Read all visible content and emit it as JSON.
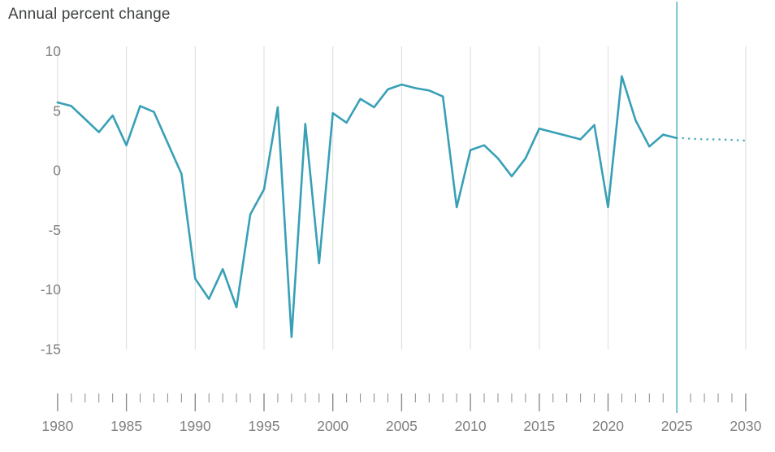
{
  "title": "Annual percent change",
  "colors": {
    "line": "#38a0b6",
    "forecast_line": "#4fadc0",
    "forecast_divider": "#76c2cf",
    "gridline": "#dbdbdb",
    "tick": "#8a8a8a",
    "axis_text": "#7f7f7f",
    "title_text": "#3d4042",
    "background": "#ffffff"
  },
  "chart_data": {
    "type": "line",
    "title": "Annual percent change",
    "xlabel": "",
    "ylabel": "Annual percent change",
    "xlim": [
      1980,
      2030
    ],
    "ylim": [
      -16.5,
      10.5
    ],
    "yticks": [
      10,
      5,
      0,
      -5,
      -10,
      -15
    ],
    "xticks_major": [
      1980,
      1985,
      1990,
      1995,
      2000,
      2005,
      2010,
      2015,
      2020,
      2025,
      2030
    ],
    "xtick_minor_step": 1,
    "grid": "vertical-only",
    "legend": "none",
    "forecast_divider_x": 2025,
    "series": [
      {
        "name": "historical",
        "style": "solid",
        "x": [
          1980,
          1981,
          1982,
          1983,
          1984,
          1985,
          1986,
          1987,
          1988,
          1989,
          1990,
          1991,
          1992,
          1993,
          1994,
          1995,
          1996,
          1997,
          1998,
          1999,
          2000,
          2001,
          2002,
          2003,
          2004,
          2005,
          2006,
          2007,
          2008,
          2009,
          2010,
          2011,
          2012,
          2013,
          2014,
          2015,
          2016,
          2017,
          2018,
          2019,
          2020,
          2021,
          2022,
          2023,
          2024,
          2025
        ],
        "values": [
          5.7,
          5.4,
          4.3,
          3.2,
          4.6,
          2.1,
          5.4,
          4.9,
          2.3,
          -0.3,
          -9.1,
          -10.8,
          -8.3,
          -11.5,
          -3.7,
          -1.6,
          5.3,
          -14.0,
          3.9,
          -7.8,
          4.8,
          4.0,
          6.0,
          5.3,
          6.8,
          7.2,
          6.9,
          6.7,
          6.2,
          -3.1,
          1.7,
          2.1,
          1.0,
          -0.5,
          1.0,
          3.5,
          3.2,
          2.9,
          2.6,
          3.8,
          -3.1,
          7.9,
          4.2,
          2.0,
          3.0,
          2.7
        ]
      },
      {
        "name": "forecast",
        "style": "dotted",
        "x": [
          2025,
          2026,
          2027,
          2028,
          2029,
          2030
        ],
        "values": [
          2.7,
          2.65,
          2.6,
          2.6,
          2.55,
          2.5
        ]
      }
    ]
  }
}
